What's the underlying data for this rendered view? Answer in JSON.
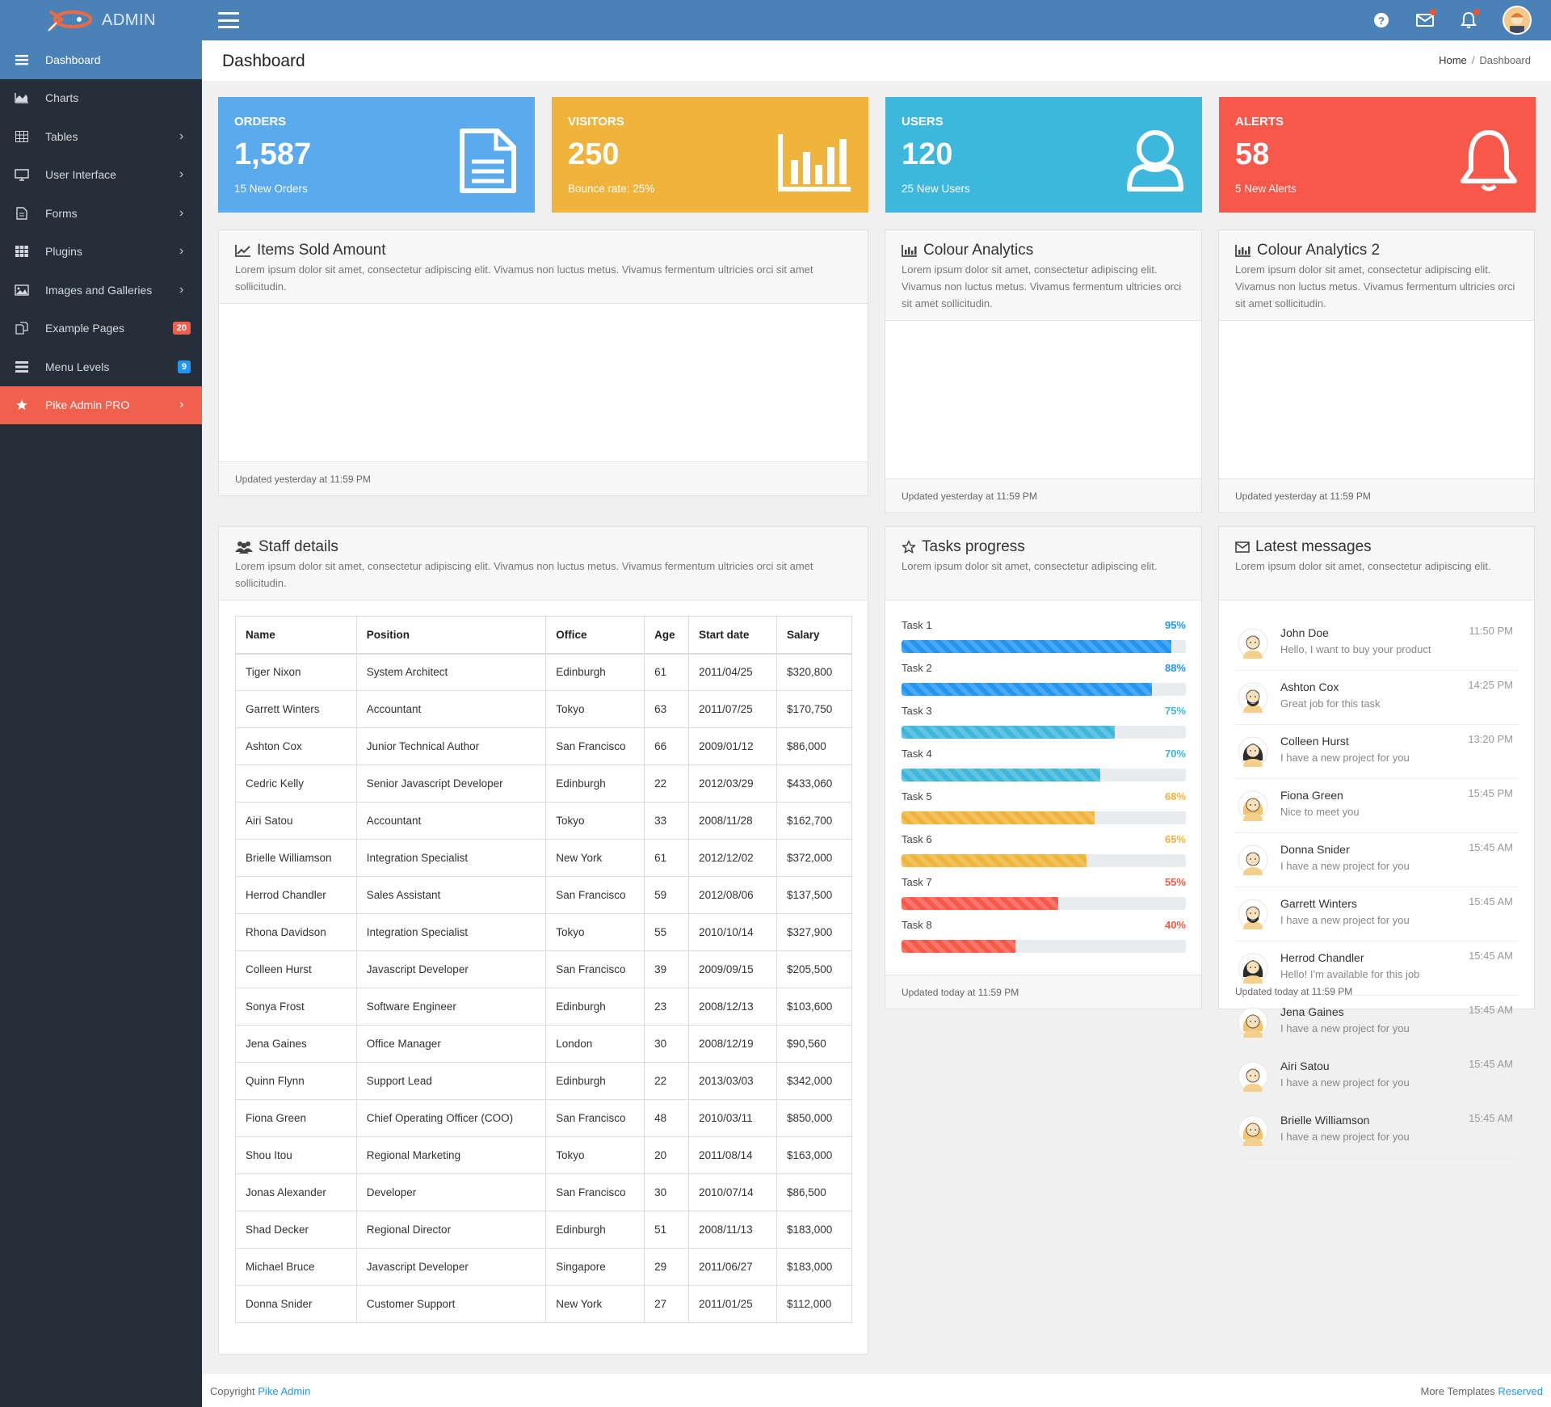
{
  "app": {
    "logo_text": "ADMIN"
  },
  "colors": {
    "topbar": "#4a82b8",
    "sidebar": "#262e39",
    "orders": "#5aabee",
    "visitors": "#f0b43c",
    "users": "#3db8dc",
    "alerts": "#f8584a"
  },
  "topbar_icons": [
    "hamburger-icon",
    "help-icon",
    "mail-icon",
    "bell-icon",
    "avatar"
  ],
  "sidebar": {
    "items": [
      {
        "label": "Dashboard",
        "icon": "bars-icon"
      },
      {
        "label": "Charts",
        "icon": "area-chart-icon"
      },
      {
        "label": "Tables",
        "icon": "table-icon"
      },
      {
        "label": "User Interface",
        "icon": "monitor-icon"
      },
      {
        "label": "Forms",
        "icon": "file-icon"
      },
      {
        "label": "Plugins",
        "icon": "grid-icon"
      },
      {
        "label": "Images and Galleries",
        "icon": "image-icon"
      },
      {
        "label": "Example Pages",
        "icon": "copy-icon",
        "badge": "20"
      },
      {
        "label": "Menu Levels",
        "icon": "list-icon",
        "badge": "9"
      },
      {
        "label": "Pike Admin PRO",
        "icon": "star-icon"
      }
    ]
  },
  "page": {
    "title": "Dashboard",
    "breadcrumb_home": "Home",
    "breadcrumb_current": "Dashboard"
  },
  "stats": [
    {
      "title": "ORDERS",
      "value": "1,587",
      "sub": "15 New Orders"
    },
    {
      "title": "VISITORS",
      "value": "250",
      "sub": "Bounce rate: 25%"
    },
    {
      "title": "USERS",
      "value": "120",
      "sub": "25 New Users"
    },
    {
      "title": "ALERTS",
      "value": "58",
      "sub": "5 New Alerts"
    }
  ],
  "cards": {
    "items_sold": {
      "title": "Items Sold Amount",
      "desc": "Lorem ipsum dolor sit amet, consectetur adipiscing elit. Vivamus non luctus metus. Vivamus fermentum ultricies orci sit amet sollicitudin.",
      "footer": "Updated yesterday at 11:59 PM"
    },
    "colour1": {
      "title": "Colour Analytics",
      "desc": "Lorem ipsum dolor sit amet, consectetur adipiscing elit. Vivamus non luctus metus. Vivamus fermentum ultricies orci sit amet sollicitudin.",
      "footer": "Updated yesterday at 11:59 PM"
    },
    "colour2": {
      "title": "Colour Analytics 2",
      "desc": "Lorem ipsum dolor sit amet, consectetur adipiscing elit. Vivamus non luctus metus. Vivamus fermentum ultricies orci sit amet sollicitudin.",
      "footer": "Updated yesterday at 11:59 PM"
    },
    "staff": {
      "title": "Staff details",
      "desc": "Lorem ipsum dolor sit amet, consectetur adipiscing elit. Vivamus non luctus metus. Vivamus fermentum ultricies orci sit amet sollicitudin."
    },
    "tasks": {
      "title": "Tasks progress",
      "desc": "Lorem ipsum dolor sit amet, consectetur adipiscing elit.",
      "footer": "Updated today at 11:59 PM"
    },
    "messages": {
      "title": "Latest messages",
      "desc": "Lorem ipsum dolor sit amet, consectetur adipiscing elit.",
      "footer": "Updated today at 11:59 PM"
    }
  },
  "staff_table": {
    "headers": [
      "Name",
      "Position",
      "Office",
      "Age",
      "Start date",
      "Salary"
    ],
    "rows": [
      [
        "Tiger Nixon",
        "System Architect",
        "Edinburgh",
        "61",
        "2011/04/25",
        "$320,800"
      ],
      [
        "Garrett Winters",
        "Accountant",
        "Tokyo",
        "63",
        "2011/07/25",
        "$170,750"
      ],
      [
        "Ashton Cox",
        "Junior Technical Author",
        "San Francisco",
        "66",
        "2009/01/12",
        "$86,000"
      ],
      [
        "Cedric Kelly",
        "Senior Javascript Developer",
        "Edinburgh",
        "22",
        "2012/03/29",
        "$433,060"
      ],
      [
        "Airi Satou",
        "Accountant",
        "Tokyo",
        "33",
        "2008/11/28",
        "$162,700"
      ],
      [
        "Brielle Williamson",
        "Integration Specialist",
        "New York",
        "61",
        "2012/12/02",
        "$372,000"
      ],
      [
        "Herrod Chandler",
        "Sales Assistant",
        "San Francisco",
        "59",
        "2012/08/06",
        "$137,500"
      ],
      [
        "Rhona Davidson",
        "Integration Specialist",
        "Tokyo",
        "55",
        "2010/10/14",
        "$327,900"
      ],
      [
        "Colleen Hurst",
        "Javascript Developer",
        "San Francisco",
        "39",
        "2009/09/15",
        "$205,500"
      ],
      [
        "Sonya Frost",
        "Software Engineer",
        "Edinburgh",
        "23",
        "2008/12/13",
        "$103,600"
      ],
      [
        "Jena Gaines",
        "Office Manager",
        "London",
        "30",
        "2008/12/19",
        "$90,560"
      ],
      [
        "Quinn Flynn",
        "Support Lead",
        "Edinburgh",
        "22",
        "2013/03/03",
        "$342,000"
      ],
      [
        "Fiona Green",
        "Chief Operating Officer (COO)",
        "San Francisco",
        "48",
        "2010/03/11",
        "$850,000"
      ],
      [
        "Shou Itou",
        "Regional Marketing",
        "Tokyo",
        "20",
        "2011/08/14",
        "$163,000"
      ],
      [
        "Jonas Alexander",
        "Developer",
        "San Francisco",
        "30",
        "2010/07/14",
        "$86,500"
      ],
      [
        "Shad Decker",
        "Regional Director",
        "Edinburgh",
        "51",
        "2008/11/13",
        "$183,000"
      ],
      [
        "Michael Bruce",
        "Javascript Developer",
        "Singapore",
        "29",
        "2011/06/27",
        "$183,000"
      ],
      [
        "Donna Snider",
        "Customer Support",
        "New York",
        "27",
        "2011/01/25",
        "$112,000"
      ]
    ]
  },
  "tasks": [
    {
      "label": "Task 1",
      "pct": "95%",
      "value": 95,
      "color": "#2196f3"
    },
    {
      "label": "Task 2",
      "pct": "88%",
      "value": 88,
      "color": "#2196f3"
    },
    {
      "label": "Task 3",
      "pct": "75%",
      "value": 75,
      "color": "#3db8dc"
    },
    {
      "label": "Task 4",
      "pct": "70%",
      "value": 70,
      "color": "#3db8dc"
    },
    {
      "label": "Task 5",
      "pct": "68%",
      "value": 68,
      "color": "#f0b43c"
    },
    {
      "label": "Task 6",
      "pct": "65%",
      "value": 65,
      "color": "#f0b43c"
    },
    {
      "label": "Task 7",
      "pct": "55%",
      "value": 55,
      "color": "#f8584a"
    },
    {
      "label": "Task 8",
      "pct": "40%",
      "value": 40,
      "color": "#f8584a"
    }
  ],
  "messages": [
    {
      "name": "John Doe",
      "text": "Hello, I want to buy your product",
      "time": "11:50 PM",
      "avatar": "male"
    },
    {
      "name": "Ashton Cox",
      "text": "Great job for this task",
      "time": "14:25 PM",
      "avatar": "bearded"
    },
    {
      "name": "Colleen Hurst",
      "text": "I have a new project for you",
      "time": "13:20 PM",
      "avatar": "female-dark"
    },
    {
      "name": "Fiona Green",
      "text": "Nice to meet you",
      "time": "15:45 PM",
      "avatar": "female-blonde"
    },
    {
      "name": "Donna Snider",
      "text": "I have a new project for you",
      "time": "15:45 AM",
      "avatar": "male"
    },
    {
      "name": "Garrett Winters",
      "text": "I have a new project for you",
      "time": "15:45 AM",
      "avatar": "bearded"
    },
    {
      "name": "Herrod Chandler",
      "text": "Hello! I'm available for this job",
      "time": "15:45 AM",
      "avatar": "female-dark"
    },
    {
      "name": "Jena Gaines",
      "text": "I have a new project for you",
      "time": "15:45 AM",
      "avatar": "female-blonde"
    },
    {
      "name": "Airi Satou",
      "text": "I have a new project for you",
      "time": "15:45 AM",
      "avatar": "male"
    },
    {
      "name": "Brielle Williamson",
      "text": "I have a new project for you",
      "time": "15:45 AM",
      "avatar": "female-blonde"
    }
  ],
  "footer": {
    "copyright": "Copyright",
    "brand_link": "Pike Admin",
    "more": "More Templates",
    "reserved_link": "Reserved"
  }
}
